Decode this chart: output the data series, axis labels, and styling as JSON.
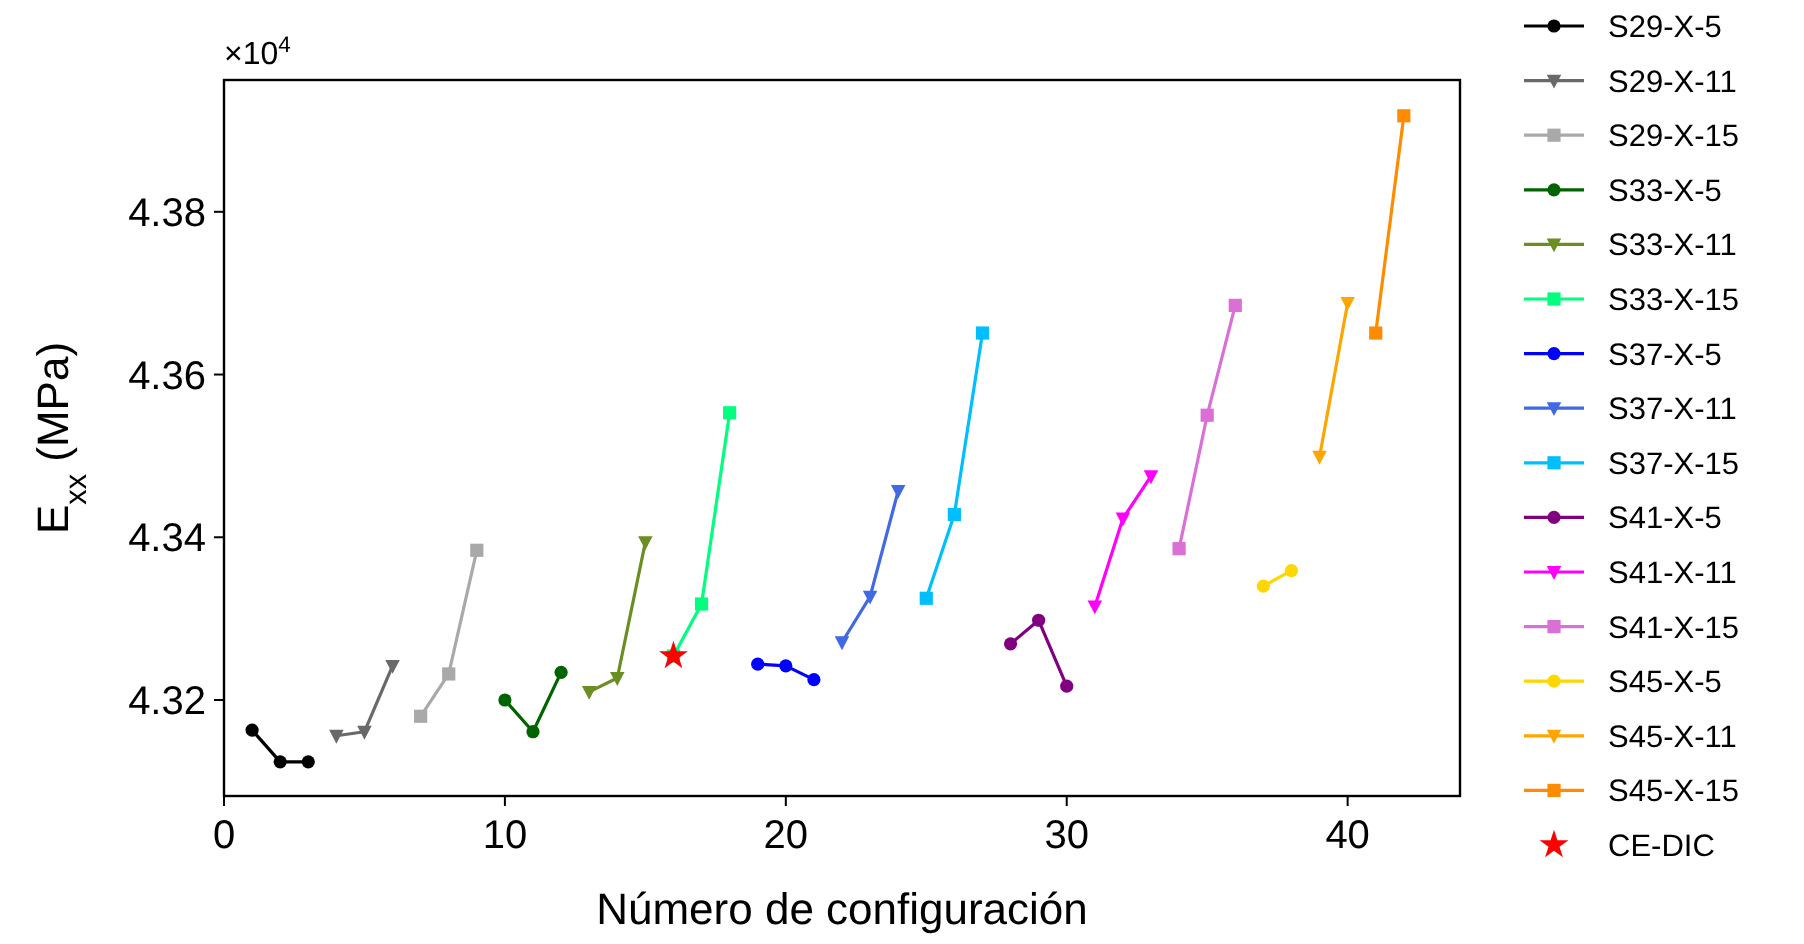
{
  "chart_data": {
    "type": "line",
    "xlabel": "Número de configuración",
    "ylabel": "E$_{xx}$ (MPa)",
    "annotations": [
      "×10$^{4}$"
    ],
    "xlim": [
      0,
      44
    ],
    "xticks": [
      0,
      10,
      20,
      30,
      40
    ],
    "ylim": [
      4.3082,
      4.3962
    ],
    "yticks": [
      4.32,
      4.34,
      4.36,
      4.38
    ],
    "grid": false,
    "legend": "right",
    "series": [
      {
        "name": "S29-X-5",
        "color": "#000000",
        "marker": "circle",
        "x": [
          1,
          2,
          3
        ],
        "values": [
          4.3163,
          4.3124,
          4.3124
        ]
      },
      {
        "name": "S29-X-11",
        "color": "#696969",
        "marker": "triangle",
        "x": [
          4,
          5,
          6
        ],
        "values": [
          4.3156,
          4.3161,
          4.3242
        ]
      },
      {
        "name": "S29-X-15",
        "color": "#a9a9a9",
        "marker": "square",
        "x": [
          7,
          8,
          9
        ],
        "values": [
          4.318,
          4.3232,
          4.3384
        ]
      },
      {
        "name": "S33-X-5",
        "color": "#006400",
        "marker": "circle",
        "x": [
          10,
          11,
          12
        ],
        "values": [
          4.32,
          4.3161,
          4.3234
        ]
      },
      {
        "name": "S33-X-11",
        "color": "#6b8e23",
        "marker": "triangle",
        "x": [
          13,
          14,
          15
        ],
        "values": [
          4.321,
          4.3227,
          4.3394
        ]
      },
      {
        "name": "S33-X-15",
        "color": "#00ff7f",
        "marker": "square",
        "x": [
          16,
          17,
          18
        ],
        "values": [
          4.3254,
          4.3318,
          4.3553
        ]
      },
      {
        "name": "S37-X-5",
        "color": "#0000ff",
        "marker": "circle",
        "x": [
          19,
          20,
          21
        ],
        "values": [
          4.3244,
          4.3242,
          4.3225
        ]
      },
      {
        "name": "S37-X-11",
        "color": "#4169e1",
        "marker": "triangle",
        "x": [
          22,
          23,
          24
        ],
        "values": [
          4.3271,
          4.3327,
          4.3457
        ]
      },
      {
        "name": "S37-X-15",
        "color": "#00bfff",
        "marker": "square",
        "x": [
          25,
          26,
          27
        ],
        "values": [
          4.3325,
          4.3428,
          4.3651
        ]
      },
      {
        "name": "S41-X-5",
        "color": "#800080",
        "marker": "circle",
        "x": [
          28,
          29,
          30
        ],
        "values": [
          4.3269,
          4.3298,
          4.3217
        ]
      },
      {
        "name": "S41-X-11",
        "color": "#ff00ff",
        "marker": "triangle",
        "x": [
          31,
          32,
          33
        ],
        "values": [
          4.3315,
          4.3423,
          4.3475
        ]
      },
      {
        "name": "S41-X-15",
        "color": "#da70d6",
        "marker": "square",
        "x": [
          34,
          35,
          36
        ],
        "values": [
          4.3386,
          4.355,
          4.3685
        ]
      },
      {
        "name": "S45-X-5",
        "color": "#ffd700",
        "marker": "circle",
        "x": [
          37,
          38
        ],
        "values": [
          4.334,
          4.3359
        ]
      },
      {
        "name": "S45-X-11",
        "color": "#ffa500",
        "marker": "triangle",
        "x": [
          39,
          40
        ],
        "values": [
          4.3499,
          4.3688
        ]
      },
      {
        "name": "S45-X-15",
        "color": "#ff8c00",
        "marker": "square",
        "x": [
          41,
          42
        ],
        "values": [
          4.3651,
          4.3918
        ]
      },
      {
        "name": "CE-DIC",
        "type": "scatter",
        "color": "#ff0000",
        "marker": "star",
        "x": [
          16
        ],
        "values": [
          4.3254
        ]
      }
    ]
  }
}
